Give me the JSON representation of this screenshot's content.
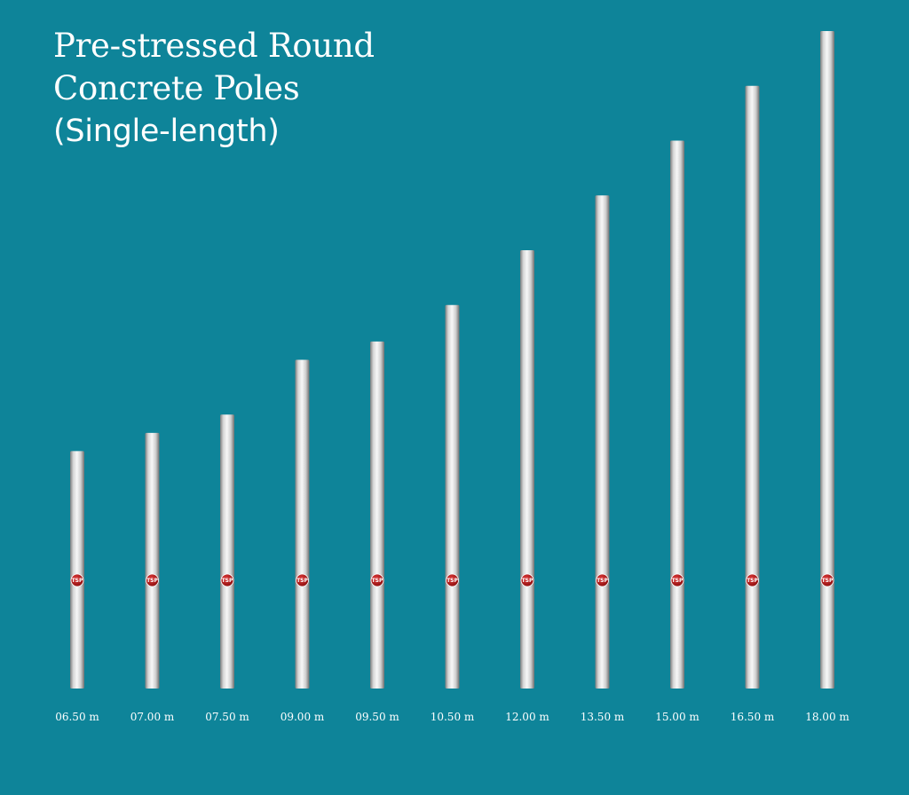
{
  "title": {
    "line1": "Pre-stressed Round",
    "line2": "Concrete Poles",
    "line3": "(Single-length)"
  },
  "colors": {
    "background": "#0e8499",
    "pole_light": "#f2f2f2",
    "pole_dark": "#8e8e8e",
    "badge": "#b01818",
    "text": "#ffffff"
  },
  "badge_text": "TSP",
  "chart_data": {
    "type": "bar",
    "unit": "m",
    "categories": [
      "06.50 m",
      "07.00 m",
      "07.50 m",
      "09.00 m",
      "09.50 m",
      "10.50 m",
      "12.00 m",
      "13.50 m",
      "15.00 m",
      "16.50 m",
      "18.00 m"
    ],
    "values": [
      6.5,
      7.0,
      7.5,
      9.0,
      9.5,
      10.5,
      12.0,
      13.5,
      15.0,
      16.5,
      18.0
    ],
    "title": "Pre-stressed Round Concrete Poles (Single-length)",
    "xlabel": "",
    "ylabel": "",
    "ylim": [
      0,
      18
    ],
    "grid": false,
    "legend": "none"
  }
}
